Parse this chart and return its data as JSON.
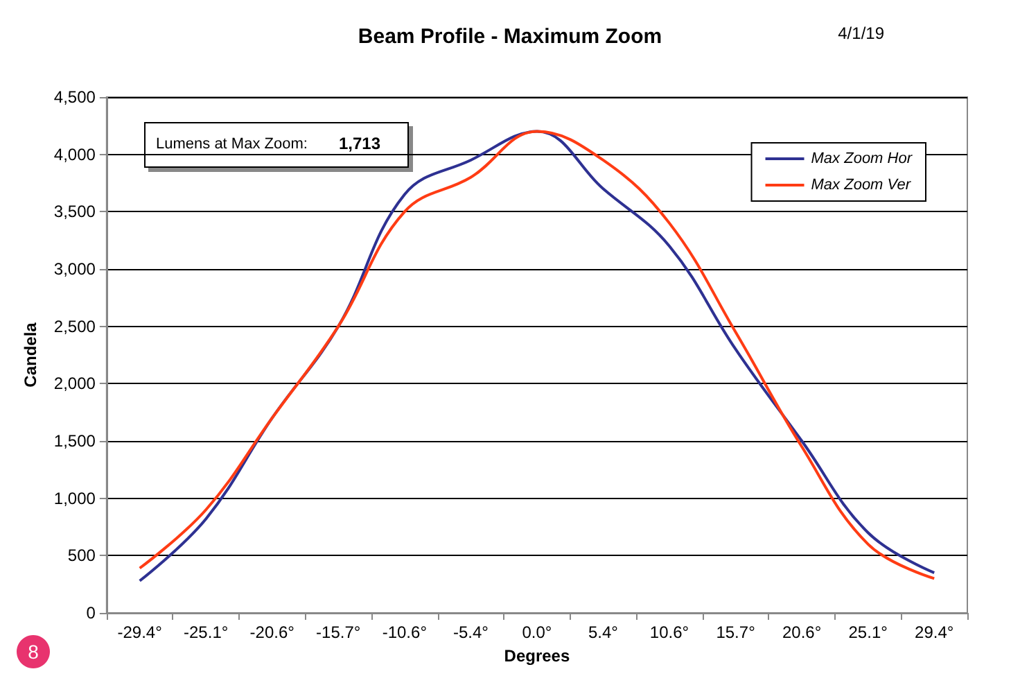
{
  "chart_data": {
    "type": "line",
    "title": "Beam Profile - Maximum Zoom",
    "xlabel": "Degrees",
    "ylabel": "Candela",
    "categories": [
      "-29.4°",
      "-25.1°",
      "-20.6°",
      "-15.7°",
      "-10.6°",
      "-5.4°",
      "0.0°",
      "5.4°",
      "10.6°",
      "15.7°",
      "20.6°",
      "25.1°",
      "29.4°"
    ],
    "series": [
      {
        "name": "Max Zoom Hor",
        "color": "#2e3192",
        "values": [
          280,
          820,
          1700,
          2500,
          3650,
          3950,
          4200,
          3700,
          3200,
          2300,
          1500,
          700,
          350
        ]
      },
      {
        "name": "Max Zoom Ver",
        "color": "#ff3c14",
        "values": [
          390,
          900,
          1700,
          2500,
          3500,
          3800,
          4200,
          3950,
          3400,
          2450,
          1450,
          600,
          300
        ]
      }
    ],
    "ylim": [
      0,
      4500
    ],
    "yticks": [
      0,
      500,
      {
        "value": 1000,
        "label": "1,000"
      },
      {
        "value": 1500,
        "label": "1,500"
      },
      {
        "value": 2000,
        "label": "2,000"
      },
      {
        "value": 2500,
        "label": "2,500"
      },
      {
        "value": 3000,
        "label": "3,000"
      },
      {
        "value": 3500,
        "label": "3,500"
      },
      {
        "value": 4000,
        "label": "4,000"
      },
      {
        "value": 4500,
        "label": "4,500"
      }
    ],
    "grid": "y",
    "legend": "top right",
    "marker": "none",
    "line_style": "solid",
    "annotations": [
      "4/1/19",
      "Lumens at Max Zoom:",
      "1,713",
      "8"
    ]
  }
}
